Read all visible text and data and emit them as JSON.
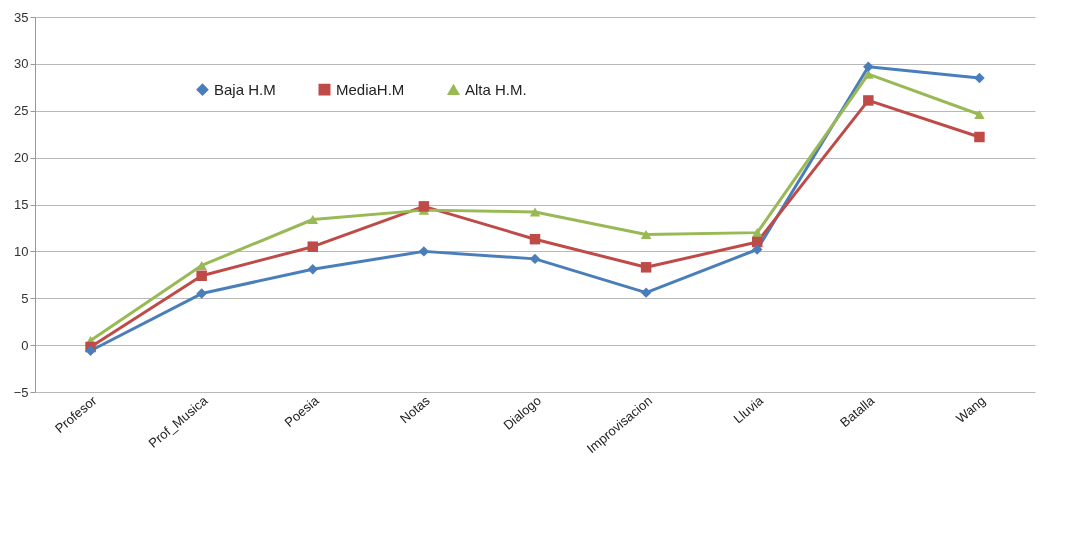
{
  "chart_data": {
    "type": "line",
    "categories": [
      "Profesor",
      "Prof_Musica",
      "Poesia",
      "Notas",
      "Dialogo",
      "Improvisacion",
      "Lluvia",
      "Batalla",
      "Wang"
    ],
    "series": [
      {
        "name": "Baja H.M",
        "color": "#4a7ebb",
        "marker": "diamond",
        "values": [
          -0.6,
          5.5,
          8.1,
          10,
          9.2,
          5.6,
          10.2,
          29.7,
          28.5
        ]
      },
      {
        "name": "MediaH.M",
        "color": "#be4b48",
        "marker": "square",
        "values": [
          -0.2,
          7.4,
          10.5,
          14.8,
          11.3,
          8.3,
          11.0,
          26.1,
          22.2
        ]
      },
      {
        "name": "Alta H.M.",
        "color": "#98b954",
        "marker": "triangle",
        "values": [
          0.5,
          8.5,
          13.4,
          14.4,
          14.2,
          11.8,
          12.0,
          28.9,
          24.6
        ]
      }
    ],
    "ylim": [
      -5,
      35
    ],
    "yticks": [
      -5,
      0,
      5,
      10,
      15,
      20,
      25,
      30,
      35
    ],
    "grid": "y",
    "legend": "top left"
  }
}
